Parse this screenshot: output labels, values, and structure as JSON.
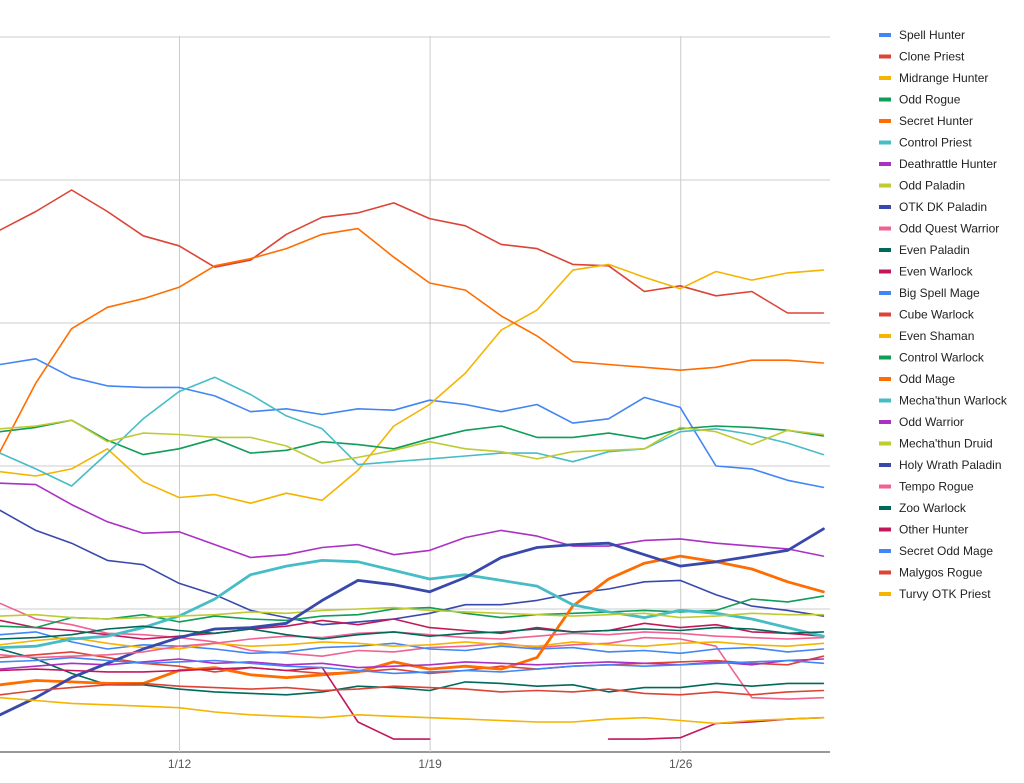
{
  "chart_data": {
    "type": "line",
    "x_tick_labels": [
      "1/12",
      "1/19",
      "1/26"
    ],
    "x_tick_index": [
      5,
      12,
      19
    ],
    "x_count": 24,
    "ylim": [
      0,
      5.2
    ],
    "y_gridlines": [
      0,
      1,
      2,
      3,
      4,
      5
    ],
    "grid": true,
    "legend_position": "right",
    "series": [
      {
        "name": "Spell Hunter",
        "color": "#4285f4",
        "width": 1.6,
        "values": [
          2.71,
          2.75,
          2.62,
          2.56,
          2.55,
          2.55,
          2.49,
          2.38,
          2.4,
          2.36,
          2.4,
          2.39,
          2.46,
          2.43,
          2.38,
          2.43,
          2.3,
          2.33,
          2.48,
          2.41,
          2.0,
          1.98,
          1.9,
          1.85
        ]
      },
      {
        "name": "Clone Priest",
        "color": "#db4437",
        "width": 1.6,
        "values": [
          3.65,
          3.78,
          3.93,
          3.78,
          3.61,
          3.54,
          3.39,
          3.44,
          3.62,
          3.74,
          3.77,
          3.84,
          3.73,
          3.68,
          3.55,
          3.52,
          3.41,
          3.4,
          3.22,
          3.26,
          3.19,
          3.22,
          3.07,
          3.07
        ]
      },
      {
        "name": "Midrange Hunter",
        "color": "#f4b400",
        "width": 1.6,
        "values": [
          1.96,
          1.93,
          1.98,
          2.12,
          1.89,
          1.78,
          1.8,
          1.74,
          1.81,
          1.76,
          1.97,
          2.28,
          2.43,
          2.65,
          2.95,
          3.09,
          3.37,
          3.41,
          3.32,
          3.24,
          3.36,
          3.3,
          3.35,
          3.37
        ]
      },
      {
        "name": "Odd Rogue",
        "color": "#0f9d58",
        "width": 1.6,
        "values": [
          2.24,
          2.27,
          2.32,
          2.18,
          2.08,
          2.12,
          2.19,
          2.09,
          2.11,
          2.17,
          2.15,
          2.12,
          2.19,
          2.25,
          2.28,
          2.2,
          2.2,
          2.23,
          2.19,
          2.26,
          2.28,
          2.27,
          2.25,
          2.21
        ]
      },
      {
        "name": "Secret Hunter",
        "color": "#ff6d00",
        "width": 1.6,
        "values": [
          2.1,
          2.58,
          2.96,
          3.11,
          3.17,
          3.25,
          3.4,
          3.45,
          3.52,
          3.62,
          3.66,
          3.46,
          3.28,
          3.23,
          3.05,
          2.91,
          2.73,
          2.71,
          2.69,
          2.67,
          2.69,
          2.74,
          2.74,
          2.72
        ]
      },
      {
        "name": "Control Priest",
        "color": "#46bdc6",
        "width": 1.6,
        "values": [
          2.09,
          1.98,
          1.86,
          2.09,
          2.33,
          2.52,
          2.62,
          2.5,
          2.35,
          2.26,
          2.01,
          2.03,
          2.05,
          2.07,
          2.09,
          2.09,
          2.03,
          2.1,
          2.12,
          2.24,
          2.26,
          2.22,
          2.16,
          2.08
        ]
      },
      {
        "name": "Deathrattle Hunter",
        "color": "#ab30c4",
        "width": 1.6,
        "values": [
          1.88,
          1.87,
          1.73,
          1.61,
          1.53,
          1.54,
          1.45,
          1.36,
          1.38,
          1.43,
          1.45,
          1.38,
          1.41,
          1.5,
          1.55,
          1.51,
          1.44,
          1.44,
          1.48,
          1.49,
          1.46,
          1.44,
          1.42,
          1.37
        ]
      },
      {
        "name": "Odd Paladin",
        "color": "#c0ca33",
        "width": 1.6,
        "values": [
          2.26,
          2.28,
          2.32,
          2.17,
          2.23,
          2.22,
          2.2,
          2.2,
          2.14,
          2.02,
          2.06,
          2.11,
          2.17,
          2.12,
          2.1,
          2.05,
          2.1,
          2.11,
          2.12,
          2.27,
          2.24,
          2.15,
          2.25,
          2.22
        ]
      },
      {
        "name": "OTK DK Paladin",
        "color": "#3949ab",
        "width": 1.6,
        "values": [
          1.69,
          1.55,
          1.46,
          1.34,
          1.31,
          1.18,
          1.1,
          0.99,
          0.94,
          0.89,
          0.91,
          0.93,
          0.97,
          1.03,
          1.03,
          1.06,
          1.11,
          1.14,
          1.19,
          1.2,
          1.1,
          1.02,
          0.99,
          0.95
        ]
      },
      {
        "name": "Odd Quest Warrior",
        "color": "#f06292",
        "width": 1.6,
        "values": [
          1.04,
          0.93,
          0.89,
          0.83,
          0.82,
          0.8,
          0.77,
          0.71,
          0.69,
          0.67,
          0.71,
          0.7,
          0.73,
          0.74,
          0.76,
          0.73,
          0.75,
          0.76,
          0.8,
          0.79,
          0.74,
          0.38,
          0.37,
          0.38
        ]
      },
      {
        "name": "Even Paladin",
        "color": "#00695c",
        "width": 1.6,
        "values": [
          0.72,
          0.65,
          0.55,
          0.47,
          0.47,
          0.44,
          0.42,
          0.41,
          0.4,
          0.42,
          0.46,
          0.45,
          0.43,
          0.49,
          0.48,
          0.46,
          0.47,
          0.42,
          0.45,
          0.45,
          0.48,
          0.46,
          0.48,
          0.48
        ]
      },
      {
        "name": "Even Warlock",
        "color": "#c2185b",
        "width": 1.6,
        "values": [
          0.92,
          0.87,
          0.85,
          0.82,
          0.79,
          0.81,
          0.83,
          0.86,
          0.88,
          0.92,
          0.89,
          0.93,
          0.87,
          0.85,
          0.83,
          0.87,
          0.84,
          0.85,
          0.9,
          0.87,
          0.89,
          0.84,
          0.83,
          0.81
        ]
      },
      {
        "name": "Big Spell Mage",
        "color": "#4285f4",
        "width": 1.6,
        "values": [
          0.82,
          0.84,
          0.77,
          0.72,
          0.75,
          0.74,
          0.72,
          0.69,
          0.7,
          0.73,
          0.74,
          0.76,
          0.72,
          0.71,
          0.74,
          0.72,
          0.73,
          0.7,
          0.71,
          0.69,
          0.72,
          0.73,
          0.7,
          0.72
        ]
      },
      {
        "name": "Cube Warlock",
        "color": "#db4437",
        "width": 1.6,
        "values": [
          0.66,
          0.68,
          0.7,
          0.66,
          0.62,
          0.6,
          0.56,
          0.59,
          0.57,
          0.55,
          0.56,
          0.58,
          0.55,
          0.57,
          0.6,
          0.58,
          0.6,
          0.61,
          0.62,
          0.63,
          0.64,
          0.62,
          0.61,
          0.67
        ]
      },
      {
        "name": "Even Shaman",
        "color": "#f4b400",
        "width": 1.6,
        "values": [
          0.75,
          0.78,
          0.8,
          0.76,
          0.73,
          0.72,
          0.76,
          0.74,
          0.75,
          0.77,
          0.76,
          0.74,
          0.75,
          0.77,
          0.75,
          0.74,
          0.77,
          0.75,
          0.74,
          0.76,
          0.77,
          0.75,
          0.74,
          0.76
        ]
      },
      {
        "name": "Control Warlock",
        "color": "#0f9d58",
        "width": 1.6,
        "values": [
          0.88,
          0.87,
          0.94,
          0.93,
          0.96,
          0.91,
          0.95,
          0.93,
          0.92,
          0.95,
          0.96,
          1.0,
          1.01,
          0.97,
          0.94,
          0.96,
          0.97,
          0.98,
          0.99,
          0.98,
          0.99,
          1.07,
          1.05,
          1.09
        ]
      },
      {
        "name": "Odd Mage",
        "color": "#ff6d00",
        "width": 2.8,
        "values": [
          0.47,
          0.5,
          0.49,
          0.48,
          0.48,
          0.57,
          0.59,
          0.54,
          0.52,
          0.54,
          0.56,
          0.63,
          0.58,
          0.6,
          0.58,
          0.66,
          1.02,
          1.21,
          1.32,
          1.37,
          1.33,
          1.28,
          1.19,
          1.12
        ]
      },
      {
        "name": "Mecha'thun Warlock",
        "color": "#46bdc6",
        "width": 2.8,
        "values": [
          0.73,
          0.74,
          0.79,
          0.81,
          0.87,
          0.95,
          1.07,
          1.24,
          1.3,
          1.34,
          1.33,
          1.27,
          1.21,
          1.24,
          1.2,
          1.16,
          1.03,
          0.98,
          0.94,
          0.99,
          0.97,
          0.93,
          0.87,
          0.81
        ]
      },
      {
        "name": "Odd Warrior",
        "color": "#ab30c4",
        "width": 1.6,
        "values": [
          0.58,
          0.6,
          0.62,
          0.61,
          0.63,
          0.65,
          0.62,
          0.63,
          0.61,
          0.62,
          0.59,
          0.6,
          0.61,
          0.63,
          0.62,
          0.61,
          0.62,
          0.63,
          0.62,
          0.61,
          0.63,
          0.61,
          0.64,
          0.65
        ]
      },
      {
        "name": "Mecha'thun Druid",
        "color": "#c0ca33",
        "width": 1.6,
        "values": [
          0.95,
          0.96,
          0.94,
          0.93,
          0.94,
          0.95,
          0.96,
          0.98,
          0.97,
          0.99,
          1.0,
          1.01,
          0.99,
          0.98,
          0.97,
          0.96,
          0.95,
          0.96,
          0.97,
          0.94,
          0.95,
          0.97,
          0.96,
          0.96
        ]
      },
      {
        "name": "Holy Wrath Paladin",
        "color": "#3949ab",
        "width": 2.8,
        "values": [
          0.26,
          0.38,
          0.52,
          0.62,
          0.72,
          0.8,
          0.86,
          0.87,
          0.9,
          1.06,
          1.2,
          1.17,
          1.12,
          1.22,
          1.36,
          1.43,
          1.45,
          1.46,
          1.38,
          1.3,
          1.33,
          1.37,
          1.41,
          1.56
        ]
      },
      {
        "name": "Tempo Rogue",
        "color": "#f06292",
        "width": 1.6,
        "values": [
          0.68,
          0.66,
          0.67,
          0.68,
          0.7,
          0.74,
          0.76,
          0.79,
          0.81,
          0.8,
          0.83,
          0.84,
          0.82,
          0.8,
          0.79,
          0.81,
          0.83,
          0.82,
          0.84,
          0.83,
          0.81,
          0.8,
          0.79,
          0.8
        ]
      },
      {
        "name": "Zoo Warlock",
        "color": "#00695c",
        "width": 1.6,
        "values": [
          0.79,
          0.8,
          0.82,
          0.86,
          0.88,
          0.85,
          0.83,
          0.86,
          0.82,
          0.79,
          0.82,
          0.84,
          0.81,
          0.83,
          0.84,
          0.86,
          0.84,
          0.85,
          0.86,
          0.85,
          0.87,
          0.86,
          0.83,
          0.84
        ]
      },
      {
        "name": "Other Hunter",
        "color": "#c2185b",
        "width": 1.6,
        "values": [
          0.57,
          0.58,
          0.57,
          0.56,
          0.56,
          0.57,
          0.58,
          0.59,
          0.57,
          0.59,
          0.21,
          0.09,
          0.09,
          null,
          null,
          null,
          null,
          0.09,
          0.09,
          0.1,
          0.2,
          0.21,
          0.23,
          0.24
        ]
      },
      {
        "name": "Secret Odd Mage",
        "color": "#4285f4",
        "width": 1.6,
        "values": [
          0.63,
          0.64,
          0.66,
          0.64,
          0.62,
          0.63,
          0.64,
          0.62,
          0.6,
          0.59,
          0.57,
          0.55,
          0.56,
          0.57,
          0.56,
          0.58,
          0.6,
          0.61,
          0.6,
          0.61,
          0.62,
          0.63,
          0.64,
          0.62
        ]
      },
      {
        "name": "Malygos Rogue",
        "color": "#db4437",
        "width": 1.6,
        "values": [
          0.4,
          0.43,
          0.45,
          0.47,
          0.48,
          0.46,
          0.45,
          0.44,
          0.45,
          0.43,
          0.44,
          0.46,
          0.45,
          0.44,
          0.42,
          0.43,
          0.42,
          0.44,
          0.41,
          0.4,
          0.42,
          0.4,
          0.42,
          0.43
        ]
      },
      {
        "name": "Turvy OTK Priest",
        "color": "#f4b400",
        "width": 1.6,
        "values": [
          0.38,
          0.36,
          0.34,
          0.33,
          0.32,
          0.31,
          0.28,
          0.26,
          0.25,
          0.24,
          0.26,
          0.25,
          0.24,
          0.23,
          0.22,
          0.21,
          0.21,
          0.23,
          0.24,
          0.22,
          0.2,
          0.22,
          0.23,
          0.24
        ]
      }
    ]
  }
}
